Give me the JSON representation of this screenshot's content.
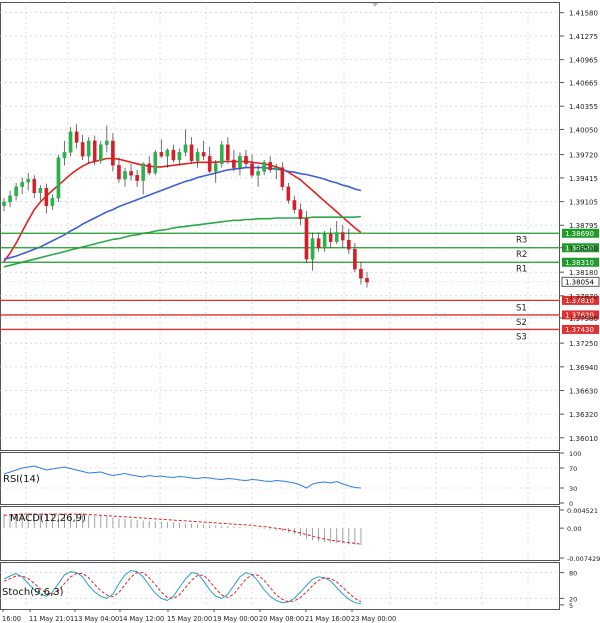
{
  "chart_data": {
    "type": "candlestick",
    "price_axis": {
      "ticks": [
        "1.41580",
        "1.41275",
        "1.40965",
        "1.40665",
        "1.40355",
        "1.40050",
        "1.39720",
        "1.39415",
        "1.39105",
        "1.38795",
        "1.38500",
        "1.38180",
        "1.37870",
        "1.37580",
        "1.37250",
        "1.36940",
        "1.36630",
        "1.36320",
        "1.36010"
      ],
      "range": [
        1.3585,
        1.4172
      ]
    },
    "current_price": "1.38054",
    "levels": [
      {
        "name": "R3",
        "value": 1.3869,
        "label": "1.38690",
        "color": "#1f9b2a"
      },
      {
        "name": "R2",
        "value": 1.385,
        "label": "1.38500",
        "color": "#1f9b2a"
      },
      {
        "name": "R1",
        "value": 1.3831,
        "label": "1.38310",
        "color": "#1f9b2a"
      },
      {
        "name": "S1",
        "value": 1.3781,
        "label": "1.37810",
        "color": "#e03030"
      },
      {
        "name": "S2",
        "value": 1.3762,
        "label": "1.37620",
        "color": "#e03030"
      },
      {
        "name": "S3",
        "value": 1.3743,
        "label": "1.37430",
        "color": "#e03030"
      }
    ],
    "candles": [
      [
        1.3905,
        1.3915,
        1.3898,
        1.391
      ],
      [
        1.391,
        1.3925,
        1.3903,
        1.3918
      ],
      [
        1.3918,
        1.3935,
        1.3912,
        1.393
      ],
      [
        1.393,
        1.3942,
        1.392,
        1.3936
      ],
      [
        1.3936,
        1.3948,
        1.3925,
        1.394
      ],
      [
        1.394,
        1.3945,
        1.3915,
        1.3922
      ],
      [
        1.3922,
        1.3932,
        1.3912,
        1.3928
      ],
      [
        1.3928,
        1.3934,
        1.3895,
        1.3905
      ],
      [
        1.3905,
        1.392,
        1.39,
        1.3915
      ],
      [
        1.3915,
        1.3972,
        1.391,
        1.3968
      ],
      [
        1.3968,
        1.399,
        1.3958,
        1.3975
      ],
      [
        1.3975,
        1.4008,
        1.397,
        1.4002
      ],
      [
        1.4002,
        1.4012,
        1.398,
        1.3988
      ],
      [
        1.3988,
        1.3998,
        1.3965,
        1.397
      ],
      [
        1.397,
        1.3995,
        1.396,
        1.399
      ],
      [
        1.399,
        1.3997,
        1.3958,
        1.3964
      ],
      [
        1.3964,
        1.399,
        1.396,
        1.3985
      ],
      [
        1.3985,
        1.401,
        1.3975,
        1.399
      ],
      [
        1.399,
        1.4,
        1.395,
        1.3958
      ],
      [
        1.3958,
        1.3968,
        1.3935,
        1.394
      ],
      [
        1.394,
        1.3955,
        1.393,
        1.395
      ],
      [
        1.395,
        1.396,
        1.3938,
        1.3945
      ],
      [
        1.3945,
        1.3952,
        1.393,
        1.3938
      ],
      [
        1.3938,
        1.3962,
        1.392,
        1.396
      ],
      [
        1.396,
        1.397,
        1.3945,
        1.3948
      ],
      [
        1.3948,
        1.3978,
        1.3945,
        1.3975
      ],
      [
        1.3975,
        1.3992,
        1.3968,
        1.397
      ],
      [
        1.397,
        1.398,
        1.3955,
        1.3978
      ],
      [
        1.3978,
        1.3985,
        1.3962,
        1.3965
      ],
      [
        1.3965,
        1.398,
        1.3958,
        1.3975
      ],
      [
        1.3975,
        1.4005,
        1.397,
        1.3985
      ],
      [
        1.3985,
        1.3995,
        1.396,
        1.3964
      ],
      [
        1.3964,
        1.398,
        1.3955,
        1.3975
      ],
      [
        1.3975,
        1.399,
        1.3965,
        1.397
      ],
      [
        1.397,
        1.3982,
        1.3948,
        1.395
      ],
      [
        1.395,
        1.3965,
        1.3935,
        1.396
      ],
      [
        1.396,
        1.399,
        1.3955,
        1.3985
      ],
      [
        1.3985,
        1.3995,
        1.396,
        1.3965
      ],
      [
        1.3965,
        1.3978,
        1.395,
        1.3955
      ],
      [
        1.3955,
        1.3975,
        1.3945,
        1.397
      ],
      [
        1.397,
        1.3978,
        1.3955,
        1.396
      ],
      [
        1.396,
        1.3972,
        1.3942,
        1.3945
      ],
      [
        1.3945,
        1.3958,
        1.393,
        1.395
      ],
      [
        1.395,
        1.3965,
        1.3945,
        1.3962
      ],
      [
        1.3962,
        1.397,
        1.3948,
        1.3952
      ],
      [
        1.3952,
        1.396,
        1.394,
        1.3955
      ],
      [
        1.3955,
        1.3962,
        1.3925,
        1.393
      ],
      [
        1.393,
        1.3935,
        1.3908,
        1.3912
      ],
      [
        1.3912,
        1.3918,
        1.3895,
        1.39
      ],
      [
        1.39,
        1.3908,
        1.388,
        1.3888
      ],
      [
        1.3888,
        1.3898,
        1.383,
        1.3835
      ],
      [
        1.3835,
        1.387,
        1.382,
        1.3862
      ],
      [
        1.3862,
        1.387,
        1.3845,
        1.385
      ],
      [
        1.385,
        1.3872,
        1.3845,
        1.3868
      ],
      [
        1.3868,
        1.3876,
        1.385,
        1.3858
      ],
      [
        1.3858,
        1.3885,
        1.3855,
        1.387
      ],
      [
        1.387,
        1.388,
        1.385,
        1.386
      ],
      [
        1.386,
        1.3875,
        1.3842,
        1.3848
      ],
      [
        1.3848,
        1.3856,
        1.3818,
        1.3822
      ],
      [
        1.3822,
        1.3832,
        1.3802,
        1.381
      ],
      [
        1.381,
        1.3818,
        1.3798,
        1.3805
      ]
    ],
    "moving_averages": [
      {
        "color": "#e62020",
        "values": [
          1.3832,
          1.3843,
          1.3856,
          1.3871,
          1.3886,
          1.39,
          1.391,
          1.3918,
          1.3925,
          1.3932,
          1.3939,
          1.3946,
          1.3952,
          1.3957,
          1.3961,
          1.3963,
          1.3965,
          1.3967,
          1.3967,
          1.3966,
          1.3964,
          1.3962,
          1.396,
          1.3958,
          1.3957,
          1.3956,
          1.3956,
          1.3957,
          1.3958,
          1.3959,
          1.396,
          1.3961,
          1.3962,
          1.3962,
          1.3962,
          1.3962,
          1.3963,
          1.3963,
          1.3963,
          1.3963,
          1.3963,
          1.3962,
          1.3961,
          1.396,
          1.3958,
          1.3956,
          1.3953,
          1.3949,
          1.3944,
          1.3939,
          1.3932,
          1.3925,
          1.3918,
          1.3911,
          1.3904,
          1.3897,
          1.389,
          1.3883,
          1.3876,
          1.387
        ]
      },
      {
        "color": "#3d5fd9",
        "values": [
          1.3835,
          1.3837,
          1.3839,
          1.3842,
          1.3845,
          1.3848,
          1.3851,
          1.3855,
          1.3859,
          1.3863,
          1.3867,
          1.3872,
          1.3876,
          1.3881,
          1.3885,
          1.3889,
          1.3893,
          1.3897,
          1.39,
          1.3904,
          1.3907,
          1.391,
          1.3913,
          1.3916,
          1.3919,
          1.3922,
          1.3925,
          1.3928,
          1.3931,
          1.3934,
          1.3937,
          1.3939,
          1.3942,
          1.3944,
          1.3946,
          1.3948,
          1.395,
          1.3952,
          1.3953,
          1.3954,
          1.3955,
          1.3955,
          1.3955,
          1.3955,
          1.3954,
          1.3953,
          1.3952,
          1.395,
          1.3949,
          1.3947,
          1.3946,
          1.3944,
          1.3942,
          1.394,
          1.3937,
          1.3935,
          1.3932,
          1.393,
          1.3927,
          1.3925
        ]
      },
      {
        "color": "#2aa84a",
        "values": [
          1.3825,
          1.3827,
          1.3829,
          1.3831,
          1.3833,
          1.3835,
          1.3837,
          1.3839,
          1.3841,
          1.3843,
          1.3845,
          1.3847,
          1.3849,
          1.3851,
          1.3853,
          1.3855,
          1.3857,
          1.3859,
          1.3861,
          1.3862,
          1.3864,
          1.3866,
          1.3867,
          1.3869,
          1.387,
          1.3872,
          1.3873,
          1.3874,
          1.3876,
          1.3877,
          1.3878,
          1.3879,
          1.388,
          1.3881,
          1.3882,
          1.3883,
          1.3884,
          1.3885,
          1.3886,
          1.3886,
          1.3887,
          1.3887,
          1.3888,
          1.3888,
          1.3888,
          1.3889,
          1.3889,
          1.3889,
          1.3889,
          1.3889,
          1.3889,
          1.389,
          1.389,
          1.389,
          1.389,
          1.389,
          1.389,
          1.389,
          1.389,
          1.3891
        ]
      }
    ],
    "x_axis_labels": [
      "16:00",
      "11 May 21:01",
      "13 May 04:00",
      "14 May 12:00",
      "15 May 20:00",
      "19 May 00:00",
      "20 May 08:00",
      "21 May 16:00",
      "23 May 00:00"
    ],
    "rsi": {
      "label": "RSI(14)",
      "ticks": [
        "100",
        "70",
        "30",
        "0"
      ],
      "values": [
        58,
        62,
        66,
        70,
        72,
        74,
        70,
        66,
        68,
        70,
        72,
        69,
        66,
        63,
        60,
        61,
        62,
        58,
        55,
        57,
        59,
        56,
        54,
        52,
        55,
        53,
        54,
        52,
        51,
        53,
        52,
        50,
        49,
        51,
        50,
        48,
        47,
        49,
        48,
        46,
        45,
        47,
        46,
        44,
        43,
        45,
        44,
        42,
        40,
        36,
        30,
        38,
        41,
        42,
        40,
        43,
        38,
        34,
        31,
        30
      ]
    },
    "macd": {
      "label": "MACD(12,26,9)",
      "ticks": [
        "0.004521",
        "0.00",
        "-0.007429"
      ],
      "range": [
        -0.007429,
        0.004521
      ],
      "histogram": [
        0.0035,
        0.0036,
        0.0037,
        0.0038,
        0.0038,
        0.0037,
        0.0036,
        0.0035,
        0.0034,
        0.0035,
        0.0036,
        0.0037,
        0.0036,
        0.0034,
        0.0032,
        0.0031,
        0.003,
        0.0029,
        0.0027,
        0.0025,
        0.0023,
        0.0022,
        0.0021,
        0.0019,
        0.0018,
        0.0017,
        0.0016,
        0.0015,
        0.0014,
        0.0013,
        0.0012,
        0.0011,
        0.001,
        0.0009,
        0.0008,
        0.0007,
        0.0006,
        0.0005,
        0.0004,
        0.0003,
        0.0002,
        0.0001,
        -0.0001,
        -0.0002,
        -0.0004,
        -0.0006,
        -0.0008,
        -0.0011,
        -0.0015,
        -0.002,
        -0.0026,
        -0.003,
        -0.0033,
        -0.0035,
        -0.0036,
        -0.0037,
        -0.0038,
        -0.004,
        -0.0041,
        -0.0042
      ],
      "signal": [
        0.0032,
        0.0033,
        0.0034,
        0.0035,
        0.0035,
        0.0035,
        0.0035,
        0.0035,
        0.0035,
        0.0035,
        0.0035,
        0.0035,
        0.0035,
        0.0035,
        0.0034,
        0.0033,
        0.0032,
        0.0031,
        0.003,
        0.0029,
        0.0028,
        0.0027,
        0.0026,
        0.0025,
        0.0024,
        0.0023,
        0.0022,
        0.0021,
        0.002,
        0.0019,
        0.0018,
        0.0017,
        0.0016,
        0.0015,
        0.0014,
        0.0013,
        0.0012,
        0.0011,
        0.001,
        0.0009,
        0.0008,
        0.0007,
        0.0005,
        0.0004,
        0.0002,
        0.0,
        -0.0002,
        -0.0005,
        -0.0008,
        -0.0012,
        -0.0016,
        -0.002,
        -0.0024,
        -0.0027,
        -0.003,
        -0.0032,
        -0.0034,
        -0.0036,
        -0.0038,
        -0.004
      ]
    },
    "stoch": {
      "label": "Stoch(9,6,3)",
      "ticks": [
        "80",
        "20",
        "5"
      ],
      "k": [
        65,
        72,
        78,
        70,
        55,
        40,
        30,
        25,
        35,
        55,
        75,
        82,
        80,
        70,
        50,
        35,
        25,
        20,
        30,
        55,
        75,
        85,
        82,
        70,
        50,
        32,
        20,
        15,
        25,
        45,
        65,
        80,
        78,
        60,
        40,
        25,
        20,
        30,
        50,
        70,
        80,
        75,
        60,
        40,
        25,
        15,
        10,
        12,
        20,
        35,
        50,
        65,
        70,
        68,
        60,
        45,
        30,
        18,
        10,
        8
      ],
      "d": [
        60,
        66,
        72,
        72,
        66,
        55,
        42,
        32,
        30,
        38,
        55,
        70,
        78,
        78,
        68,
        52,
        38,
        28,
        24,
        34,
        52,
        70,
        80,
        80,
        68,
        52,
        35,
        22,
        20,
        28,
        45,
        62,
        74,
        74,
        60,
        42,
        28,
        22,
        30,
        48,
        65,
        75,
        74,
        62,
        45,
        28,
        18,
        12,
        14,
        22,
        35,
        50,
        62,
        68,
        66,
        58,
        45,
        32,
        20,
        12
      ]
    }
  }
}
